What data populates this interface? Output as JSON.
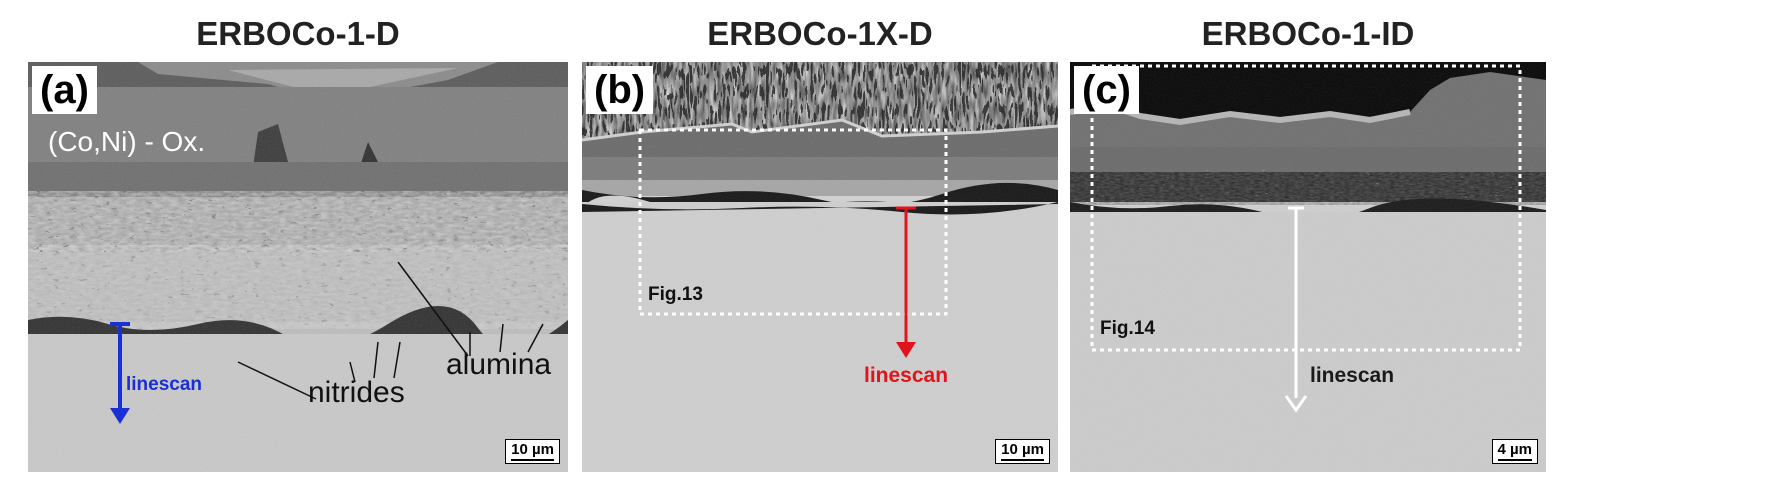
{
  "panels": [
    {
      "title": "ERBOCo-1-D",
      "label": "(a)",
      "phase_label": "(Co,Ni) - Ox.",
      "annotations": {
        "nitrides": "nitrides",
        "alumina": "alumina"
      },
      "linescan": {
        "label": "linescan",
        "color": "#1a2fd6"
      },
      "scale_bar": "10 µm"
    },
    {
      "title": "ERBOCo-1X-D",
      "label": "(b)",
      "inset_label": "Fig.13",
      "linescan": {
        "label": "linescan",
        "color": "#e0141a"
      },
      "scale_bar": "10 µm"
    },
    {
      "title": "ERBOCo-1-ID",
      "label": "(c)",
      "inset_label": "Fig.14",
      "linescan": {
        "label": "linescan",
        "color": "#ffffff"
      },
      "scale_bar": "4 µm"
    }
  ]
}
